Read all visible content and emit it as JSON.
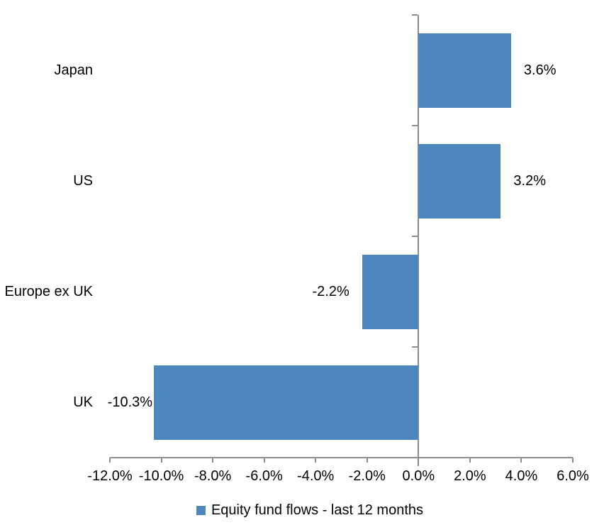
{
  "chart_data": {
    "type": "bar",
    "orientation": "horizontal",
    "title": "",
    "categories": [
      "Japan",
      "US",
      "Europe ex UK",
      "UK"
    ],
    "series": [
      {
        "name": "Equity fund flows - last 12 months",
        "values": [
          3.6,
          3.2,
          -2.2,
          -10.3
        ],
        "data_labels": [
          "3.6%",
          "3.2%",
          "-2.2%",
          "-10.3%"
        ]
      }
    ],
    "xlabel": "",
    "ylabel": "",
    "xlim": [
      -12,
      6
    ],
    "x_tick_step": 2,
    "x_tick_labels": [
      "-12.0%",
      "-10.0%",
      "-8.0%",
      "-6.0%",
      "-4.0%",
      "-2.0%",
      "0.0%",
      "2.0%",
      "4.0%",
      "6.0%"
    ],
    "grid": false,
    "legend_position": "bottom",
    "legend": [
      {
        "label": "Equity fund flows - last 12 months",
        "color": "#4D87BE"
      }
    ],
    "colors": {
      "bar": "#4D87BE",
      "axis": "#8C8C8C",
      "text": "#000000",
      "background": "#FFFFFF"
    }
  }
}
